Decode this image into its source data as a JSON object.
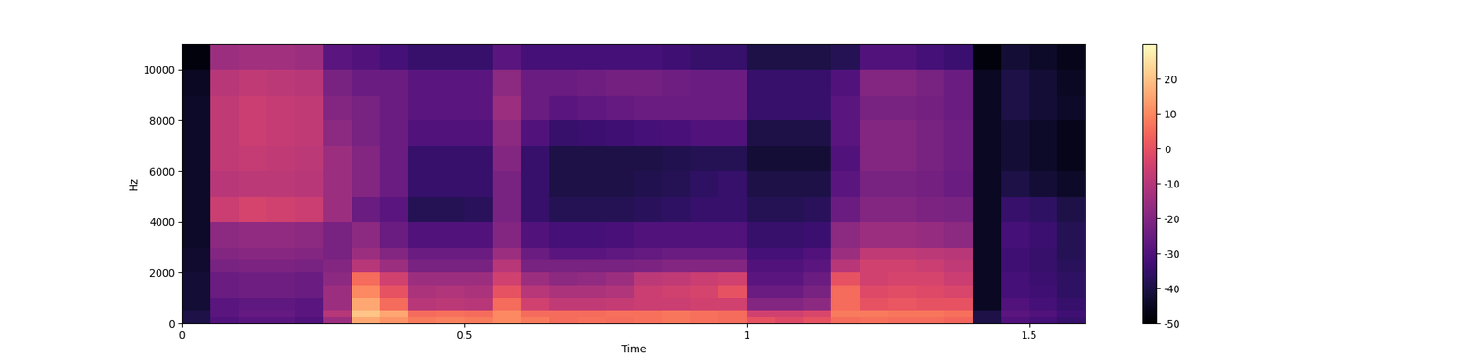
{
  "chart_data": {
    "type": "heatmap",
    "xlabel": "Time",
    "ylabel": "Hz",
    "time_edges": [
      0,
      0.05,
      0.1,
      0.15,
      0.2,
      0.25,
      0.3,
      0.35,
      0.4,
      0.45,
      0.5,
      0.55,
      0.6,
      0.65,
      0.7,
      0.75,
      0.8,
      0.85,
      0.9,
      0.95,
      1.0,
      1.05,
      1.1,
      1.15,
      1.2,
      1.25,
      1.3,
      1.35,
      1.4,
      1.45,
      1.5,
      1.55,
      1.6
    ],
    "freq_edges": [
      0,
      250,
      500,
      1000,
      1500,
      2000,
      2500,
      3000,
      4000,
      5000,
      6000,
      7000,
      8000,
      9000,
      10000,
      11025
    ],
    "cells": [
      [
        -40,
        -30,
        -28,
        -28,
        -30,
        -15,
        15,
        12,
        8,
        9,
        8,
        10,
        8,
        5,
        6,
        5,
        6,
        7,
        6,
        5,
        0,
        -2,
        0,
        5,
        6,
        5,
        5,
        4,
        -40,
        -30,
        -32,
        -35
      ],
      [
        -40,
        -28,
        -26,
        -26,
        -28,
        -10,
        20,
        15,
        5,
        6,
        5,
        10,
        5,
        5,
        5,
        6,
        6,
        7,
        6,
        5,
        -5,
        -5,
        -3,
        8,
        8,
        7,
        7,
        6,
        -40,
        -28,
        -30,
        -33
      ],
      [
        -42,
        -28,
        -27,
        -27,
        -28,
        -15,
        15,
        5,
        -10,
        -9,
        -10,
        5,
        -5,
        -8,
        -8,
        -7,
        -6,
        -6,
        -5,
        -5,
        -20,
        -20,
        -18,
        5,
        0,
        1,
        0,
        0,
        -45,
        -30,
        -32,
        -35
      ],
      [
        -42,
        -25,
        -24,
        -24,
        -25,
        -15,
        10,
        0,
        -12,
        -11,
        -12,
        0,
        -10,
        -12,
        -12,
        -11,
        -6,
        -5,
        -4,
        0,
        -25,
        -25,
        -22,
        5,
        -2,
        -1,
        -2,
        -3,
        -45,
        -32,
        -33,
        -36
      ],
      [
        -42,
        -25,
        -24,
        -24,
        -25,
        -18,
        5,
        -5,
        -15,
        -15,
        -15,
        -5,
        -15,
        -18,
        -17,
        -15,
        -9,
        -8,
        -6,
        -5,
        -28,
        -28,
        -25,
        0,
        -5,
        -4,
        -4,
        -6,
        -45,
        -32,
        -34,
        -36
      ],
      [
        -43,
        -22,
        -21,
        -21,
        -22,
        -20,
        -10,
        -15,
        -22,
        -22,
        -22,
        -10,
        -22,
        -22,
        -22,
        -22,
        -21,
        -20,
        -20,
        -20,
        -30,
        -30,
        -28,
        -10,
        -5,
        -5,
        -6,
        -8,
        -45,
        -33,
        -35,
        -37
      ],
      [
        -43,
        -20,
        -19,
        -19,
        -20,
        -22,
        -15,
        -20,
        -25,
        -25,
        -25,
        -15,
        -25,
        -28,
        -28,
        -27,
        -26,
        -25,
        -25,
        -25,
        -32,
        -32,
        -30,
        -15,
        -8,
        -8,
        -9,
        -10,
        -45,
        -33,
        -35,
        -38
      ],
      [
        -44,
        -18,
        -17,
        -17,
        -18,
        -22,
        -18,
        -25,
        -30,
        -30,
        -30,
        -20,
        -30,
        -32,
        -32,
        -31,
        -30,
        -30,
        -30,
        -30,
        -35,
        -35,
        -34,
        -18,
        -15,
        -15,
        -16,
        -18,
        -45,
        -32,
        -34,
        -38
      ],
      [
        -44,
        -6,
        -4,
        -5,
        -6,
        -15,
        -25,
        -28,
        -38,
        -38,
        -37,
        -22,
        -35,
        -38,
        -38,
        -38,
        -37,
        -36,
        -35,
        -35,
        -38,
        -38,
        -37,
        -25,
        -20,
        -20,
        -21,
        -22,
        -45,
        -35,
        -36,
        -40
      ],
      [
        -44,
        -10,
        -9,
        -9,
        -10,
        -15,
        -20,
        -25,
        -35,
        -35,
        -35,
        -22,
        -35,
        -40,
        -40,
        -40,
        -39,
        -38,
        -36,
        -35,
        -40,
        -40,
        -40,
        -28,
        -22,
        -22,
        -23,
        -25,
        -45,
        -40,
        -42,
        -44
      ],
      [
        -44,
        -8,
        -7,
        -8,
        -9,
        -15,
        -20,
        -25,
        -35,
        -35,
        -35,
        -20,
        -35,
        -40,
        -40,
        -40,
        -40,
        -39,
        -38,
        -38,
        -42,
        -42,
        -42,
        -30,
        -20,
        -20,
        -22,
        -24,
        -45,
        -42,
        -44,
        -46
      ],
      [
        -44,
        -8,
        -6,
        -7,
        -8,
        -18,
        -22,
        -25,
        -30,
        -30,
        -30,
        -18,
        -30,
        -35,
        -34,
        -33,
        -32,
        -31,
        -30,
        -30,
        -40,
        -40,
        -40,
        -28,
        -20,
        -20,
        -22,
        -24,
        -45,
        -42,
        -44,
        -46
      ],
      [
        -44,
        -8,
        -6,
        -7,
        -8,
        -20,
        -22,
        -25,
        -28,
        -28,
        -28,
        -15,
        -25,
        -28,
        -27,
        -26,
        -25,
        -25,
        -25,
        -25,
        -35,
        -35,
        -35,
        -28,
        -22,
        -22,
        -23,
        -25,
        -45,
        -40,
        -42,
        -44
      ],
      [
        -45,
        -10,
        -8,
        -9,
        -10,
        -22,
        -25,
        -25,
        -28,
        -28,
        -28,
        -18,
        -25,
        -25,
        -24,
        -23,
        -23,
        -24,
        -25,
        -25,
        -35,
        -35,
        -35,
        -30,
        -20,
        -20,
        -22,
        -25,
        -45,
        -40,
        -42,
        -45
      ],
      [
        -48,
        -15,
        -14,
        -14,
        -15,
        -28,
        -30,
        -32,
        -35,
        -35,
        -35,
        -28,
        -32,
        -32,
        -32,
        -32,
        -32,
        -33,
        -35,
        -35,
        -40,
        -40,
        -40,
        -38,
        -30,
        -30,
        -32,
        -34,
        -48,
        -42,
        -44,
        -46
      ]
    ],
    "color": "magma",
    "xlim": [
      0,
      1.6
    ],
    "xticks": [
      0,
      0.5,
      1,
      1.5
    ],
    "ylim": [
      0,
      11025
    ],
    "yticks": [
      0,
      2000,
      4000,
      6000,
      8000,
      10000
    ],
    "colorbar_range": [
      -50,
      30
    ],
    "colorbar_ticks": [
      -50,
      -40,
      -30,
      -20,
      -10,
      0,
      10,
      20
    ]
  }
}
